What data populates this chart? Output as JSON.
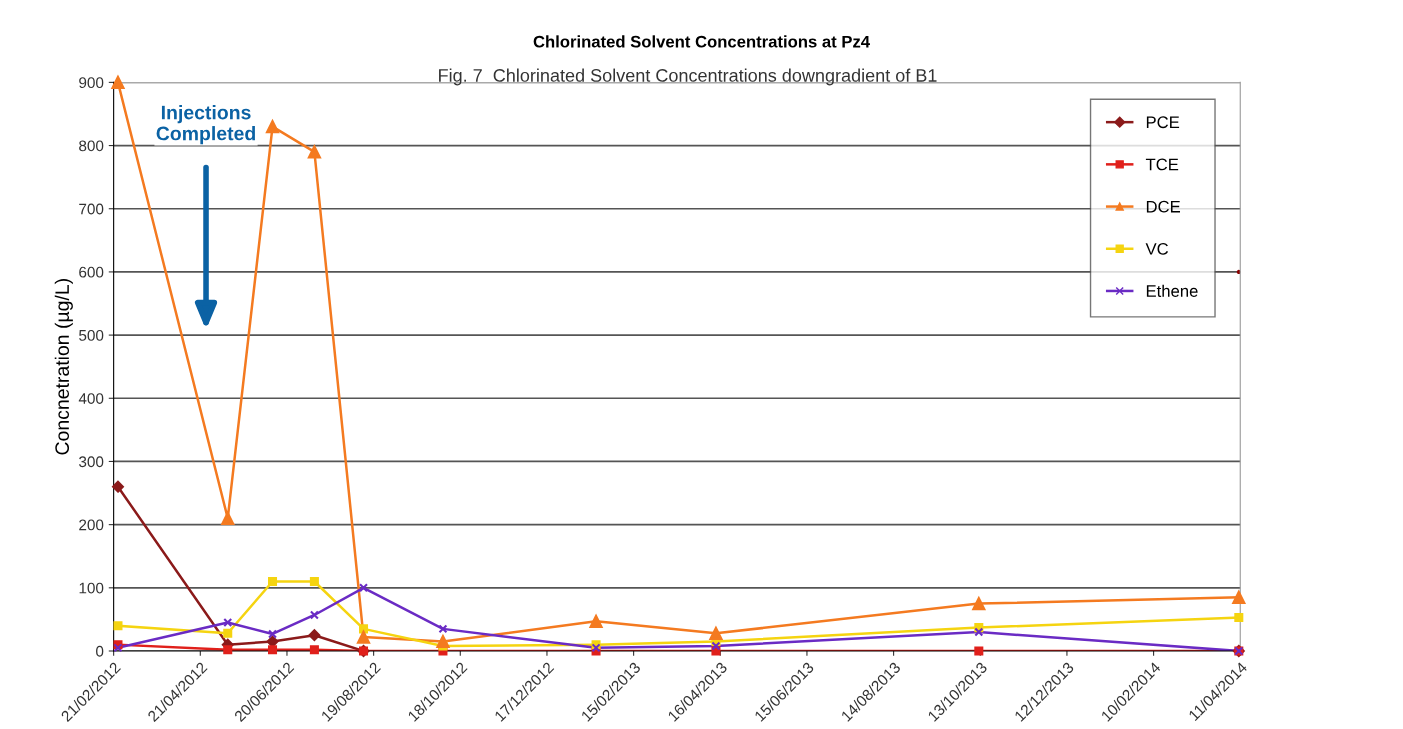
{
  "chart_data": {
    "type": "line",
    "title": "Chlorinated Solvent Concentrations at Pz4",
    "subtitle": "Fig. 7  Chlorinated Solvent Concentrations downgradient of B1",
    "ylabel": "Concnetration (µg/L)",
    "x": [
      "2012-02-24",
      "2012-05-10",
      "2012-06-10",
      "2012-07-09",
      "2012-08-12",
      "2012-10-06",
      "2013-01-20",
      "2013-04-13",
      "2013-10-12",
      "2014-04-10"
    ],
    "series": [
      {
        "name": "PCE",
        "color": "#8b1a1a",
        "marker": "diamond",
        "values": [
          260,
          10,
          15,
          25,
          0,
          null,
          null,
          null,
          null,
          0
        ]
      },
      {
        "name": "TCE",
        "color": "#e0201b",
        "marker": "square",
        "values": [
          10,
          2,
          2,
          2,
          0,
          0,
          0,
          0,
          0,
          0
        ]
      },
      {
        "name": "DCE",
        "color": "#f47a20",
        "marker": "triangle",
        "values": [
          900,
          210,
          830,
          790,
          22,
          15,
          47,
          28,
          75,
          85
        ]
      },
      {
        "name": "VC",
        "color": "#f5d410",
        "marker": "square",
        "values": [
          40,
          28,
          110,
          110,
          35,
          8,
          10,
          15,
          37,
          53
        ]
      },
      {
        "name": "Ethene",
        "color": "#6a2bc4",
        "marker": "cross",
        "values": [
          5,
          45,
          27,
          57,
          100,
          35,
          5,
          8,
          30,
          0
        ]
      },
      {
        "type": "scatter",
        "color": "#8b0000",
        "marker": "circle",
        "x": [
          "2014-04-10"
        ],
        "values": [
          600
        ]
      }
    ],
    "ylim": [
      0,
      900
    ],
    "yticks": [
      0,
      100,
      200,
      300,
      400,
      500,
      600,
      700,
      800,
      900
    ],
    "xlim": [
      "2012-02-21",
      "2014-04-11"
    ],
    "xticks": [
      {
        "value": "2012-02-21",
        "label": "21/02/2012"
      },
      {
        "value": "2012-04-21",
        "label": "21/04/2012"
      },
      {
        "value": "2012-06-20",
        "label": "20/06/2012"
      },
      {
        "value": "2012-08-19",
        "label": "19/08/2012"
      },
      {
        "value": "2012-10-18",
        "label": "18/10/2012"
      },
      {
        "value": "2012-12-17",
        "label": "17/12/2012"
      },
      {
        "value": "2013-02-15",
        "label": "15/02/2013"
      },
      {
        "value": "2013-04-16",
        "label": "16/04/2013"
      },
      {
        "value": "2013-06-15",
        "label": "15/06/2013"
      },
      {
        "value": "2013-08-14",
        "label": "14/08/2013"
      },
      {
        "value": "2013-10-13",
        "label": "13/10/2013"
      },
      {
        "value": "2013-12-12",
        "label": "12/12/2013"
      },
      {
        "value": "2014-02-10",
        "label": "10/02/2014"
      },
      {
        "value": "2014-04-11",
        "label": "11/04/2014"
      }
    ],
    "annotations": [
      "Injections\nCompleted"
    ],
    "grid": "y",
    "legend": "top right"
  }
}
